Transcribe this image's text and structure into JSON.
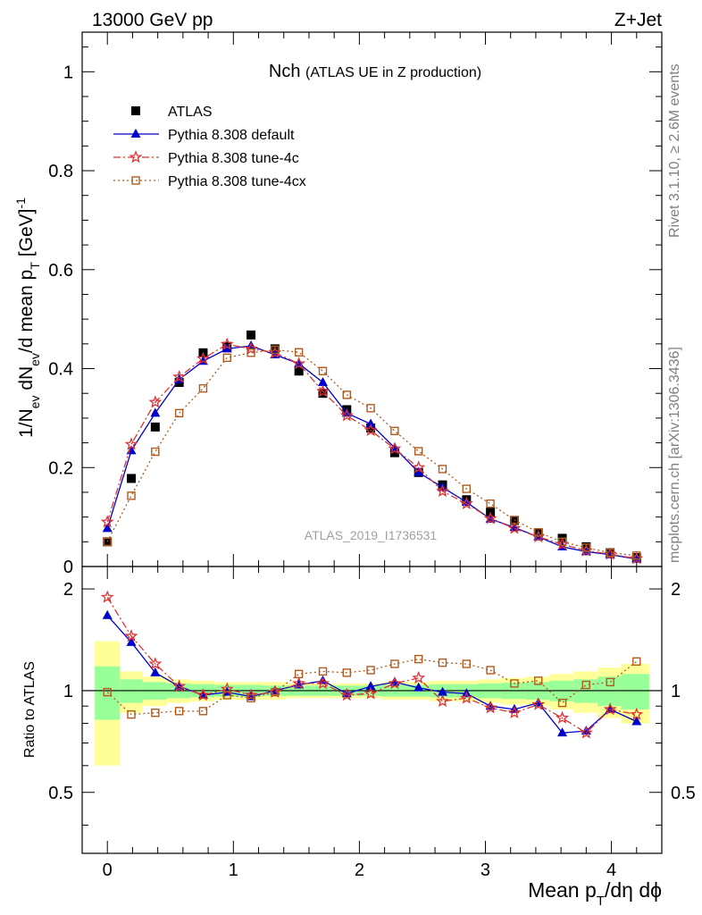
{
  "header": {
    "left": "13000 GeV pp",
    "right": "Z+Jet"
  },
  "side": {
    "top": "Rivet 3.1.10, ≥ 2.6M events",
    "bottom": "mcplots.cern.ch [arXiv:1306.3436]"
  },
  "chart_data": [
    {
      "type": "line",
      "title": "Nch",
      "subtitle": "(ATLAS UE in Z production)",
      "watermark": "ATLAS_2019_I1736531",
      "ylabel_parts": [
        "1/N",
        "ev",
        " dN",
        "ev",
        "/d mean p",
        "T",
        " [GeV]",
        "-1"
      ],
      "xlim": [
        -0.2,
        4.4
      ],
      "ylim": [
        0,
        1.08
      ],
      "x_ticks": [
        "0",
        "1",
        "2",
        "3",
        "4"
      ],
      "y_ticks": [
        "0",
        "0.2",
        "0.4",
        "0.6",
        "0.8",
        "1"
      ],
      "legend_position": "top-left",
      "x": [
        0.0,
        0.19,
        0.38,
        0.57,
        0.76,
        0.95,
        1.14,
        1.33,
        1.52,
        1.71,
        1.9,
        2.09,
        2.28,
        2.47,
        2.66,
        2.85,
        3.04,
        3.23,
        3.42,
        3.61,
        3.8,
        3.99,
        4.2
      ],
      "series": [
        {
          "name": "ATLAS",
          "color": "#000000",
          "marker": "square-filled",
          "values": [
            0.05,
            0.178,
            0.282,
            0.372,
            0.432,
            0.445,
            0.468,
            0.44,
            0.395,
            0.35,
            0.317,
            0.28,
            0.23,
            0.19,
            0.165,
            0.135,
            0.11,
            0.093,
            0.068,
            0.057,
            0.04,
            0.028,
            0.018
          ]
        },
        {
          "name": "Pythia 8.308 default",
          "color": "#0000cc",
          "marker": "triangle-filled",
          "line": "solid",
          "values": [
            0.077,
            0.234,
            0.31,
            0.378,
            0.415,
            0.44,
            0.446,
            0.428,
            0.41,
            0.372,
            0.31,
            0.288,
            0.24,
            0.19,
            0.16,
            0.13,
            0.096,
            0.079,
            0.06,
            0.04,
            0.03,
            0.024,
            0.015
          ]
        },
        {
          "name": "Pythia 8.308 tune-4c",
          "color": "#dd3333",
          "marker": "star-open",
          "line": "dashdot",
          "values": [
            0.09,
            0.247,
            0.332,
            0.383,
            0.42,
            0.449,
            0.44,
            0.432,
            0.41,
            0.354,
            0.305,
            0.275,
            0.238,
            0.2,
            0.152,
            0.127,
            0.097,
            0.077,
            0.06,
            0.045,
            0.032,
            0.025,
            0.016
          ]
        },
        {
          "name": "Pythia 8.308 tune-4cx",
          "color": "#b05a1e",
          "marker": "square-open",
          "line": "dotted",
          "values": [
            0.05,
            0.143,
            0.232,
            0.31,
            0.36,
            0.422,
            0.432,
            0.438,
            0.433,
            0.395,
            0.347,
            0.32,
            0.274,
            0.233,
            0.197,
            0.157,
            0.127,
            0.094,
            0.069,
            0.05,
            0.038,
            0.028,
            0.022
          ]
        }
      ]
    },
    {
      "type": "line",
      "ylabel": "Ratio to ATLAS",
      "xlabel_parts": [
        "Mean p",
        "T",
        "/dη dϕ"
      ],
      "xlim": [
        -0.2,
        4.4
      ],
      "ylim": [
        0.33,
        2.33
      ],
      "x_ticks": [
        "0",
        "1",
        "2",
        "3",
        "4"
      ],
      "y_ticks_labeled": [
        0.5,
        1,
        2
      ],
      "y_tick_labels": [
        "0.5",
        "1",
        "2"
      ],
      "reference": 1,
      "bands": {
        "edges": [
          -0.1,
          0.1,
          0.28,
          0.47,
          0.66,
          0.85,
          1.04,
          1.23,
          1.42,
          1.61,
          1.8,
          1.99,
          2.18,
          2.37,
          2.56,
          2.75,
          2.94,
          3.13,
          3.32,
          3.51,
          3.7,
          3.89,
          4.08,
          4.3
        ],
        "outer_color": "#ffff99",
        "inner_color": "#99ff99",
        "outer_half_width": [
          0.4,
          0.14,
          0.1,
          0.08,
          0.07,
          0.06,
          0.06,
          0.06,
          0.05,
          0.05,
          0.05,
          0.05,
          0.06,
          0.06,
          0.07,
          0.07,
          0.08,
          0.09,
          0.1,
          0.12,
          0.14,
          0.17,
          0.2
        ],
        "inner_half_width": [
          0.18,
          0.08,
          0.06,
          0.05,
          0.045,
          0.04,
          0.04,
          0.035,
          0.035,
          0.035,
          0.035,
          0.035,
          0.04,
          0.04,
          0.045,
          0.045,
          0.05,
          0.055,
          0.06,
          0.07,
          0.08,
          0.1,
          0.12
        ]
      },
      "series": [
        {
          "name": "Pythia 8.308 default",
          "color": "#0000cc",
          "values": [
            1.67,
            1.39,
            1.13,
            1.03,
            0.97,
            0.99,
            0.96,
            1.0,
            1.04,
            1.07,
            0.98,
            1.03,
            1.06,
            1.02,
            0.99,
            0.98,
            0.9,
            0.88,
            0.92,
            0.75,
            0.76,
            0.88,
            0.81
          ]
        },
        {
          "name": "Pythia 8.308 tune-4c",
          "color": "#dd3333",
          "values": [
            1.89,
            1.45,
            1.2,
            1.03,
            0.97,
            1.01,
            0.97,
            0.99,
            1.05,
            1.05,
            0.97,
            0.98,
            1.05,
            1.09,
            0.93,
            0.95,
            0.89,
            0.86,
            0.91,
            0.83,
            0.75,
            0.88,
            0.85
          ]
        },
        {
          "name": "Pythia 8.308 tune-4cx",
          "color": "#b05a1e",
          "values": [
            0.99,
            0.85,
            0.86,
            0.87,
            0.87,
            0.97,
            0.95,
            0.99,
            1.12,
            1.14,
            1.13,
            1.15,
            1.2,
            1.24,
            1.21,
            1.2,
            1.15,
            1.05,
            1.07,
            0.92,
            1.04,
            1.06,
            1.22
          ]
        }
      ]
    }
  ]
}
